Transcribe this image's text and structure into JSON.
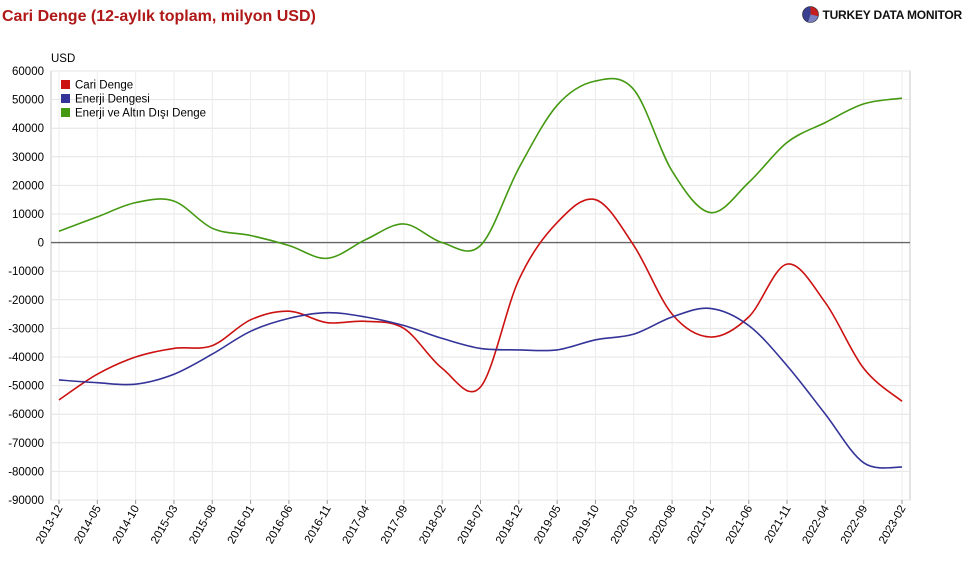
{
  "header": {
    "title": "Cari Denge (12-aylık toplam, milyon USD)",
    "brand": "TURKEY DATA MONITOR"
  },
  "chart_data": {
    "type": "line",
    "ylabel": "USD",
    "ylim": [
      -90000,
      60000
    ],
    "y_ticks": [
      60000,
      50000,
      40000,
      30000,
      20000,
      10000,
      0,
      -10000,
      -20000,
      -30000,
      -40000,
      -50000,
      -60000,
      -70000,
      -80000,
      -90000
    ],
    "x_tick_labels": [
      "2013-12",
      "2014-05",
      "2014-10",
      "2015-03",
      "2015-08",
      "2016-01",
      "2016-06",
      "2016-11",
      "2017-04",
      "2017-09",
      "2018-02",
      "2018-07",
      "2018-12",
      "2019-05",
      "2019-10",
      "2020-03",
      "2020-08",
      "2021-01",
      "2021-06",
      "2021-11",
      "2022-04",
      "2022-09",
      "2023-02"
    ],
    "legend_position": "top-left",
    "grid": true,
    "x_period": "monthly 2013-12 to 2023-02 (one value per 5-month step)",
    "series": [
      {
        "name": "Cari Denge",
        "color": "#cc1111",
        "values": [
          -55000,
          -46000,
          -40000,
          -37000,
          -36000,
          -27000,
          -24000,
          -28000,
          -27500,
          -30000,
          -44000,
          -50500,
          -13000,
          7000,
          15000,
          -1000,
          -25000,
          -33000,
          -26000,
          -7500,
          -21000,
          -44000,
          -55500
        ]
      },
      {
        "name": "Enerji Dengesi",
        "color": "#333399",
        "values": [
          -48000,
          -49000,
          -49500,
          -46000,
          -39000,
          -31000,
          -26500,
          -24500,
          -26000,
          -29000,
          -33500,
          -37000,
          -37500,
          -37500,
          -34000,
          -32000,
          -26000,
          -23000,
          -29000,
          -43000,
          -60000,
          -77000,
          -78500
        ]
      },
      {
        "name": "Enerji ve Altın Dışı Denge",
        "color": "#449911",
        "values": [
          4000,
          9000,
          14000,
          14500,
          5000,
          2500,
          -1000,
          -5500,
          1000,
          6500,
          0,
          -1000,
          26000,
          48000,
          56500,
          53500,
          25000,
          10500,
          21000,
          35000,
          42000,
          48500,
          50500
        ]
      }
    ]
  }
}
